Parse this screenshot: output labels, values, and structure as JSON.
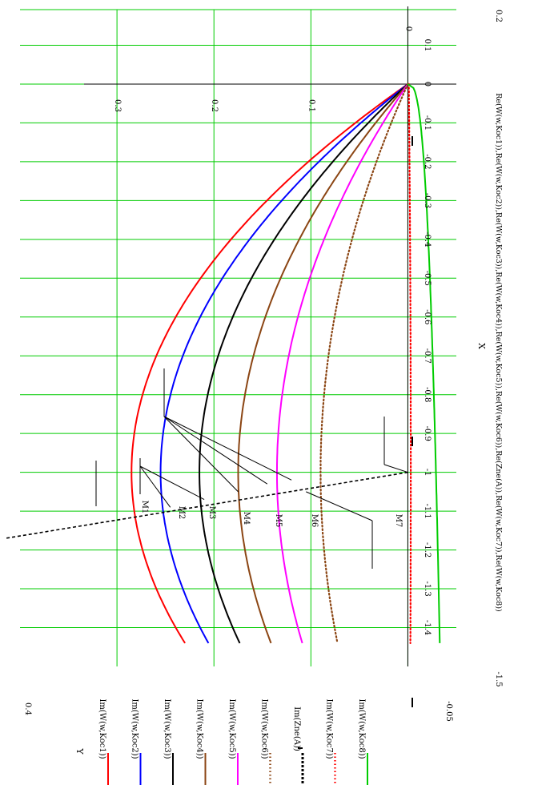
{
  "chart_data": {
    "type": "line",
    "orientation": "rotated 90 degrees clockwise (X runs top to bottom, Y runs right to left)",
    "x_axis": {
      "label": "X",
      "range": [
        -1.5,
        0.2
      ],
      "ticks": [
        -1.4,
        -1.3,
        -1.2,
        -1.1,
        -1,
        -0.9,
        -0.8,
        -0.7,
        -0.6,
        -0.5,
        -0.4,
        -0.3,
        -0.2,
        -0.1,
        0,
        0.1
      ],
      "tick_labels": [
        "-1.4",
        "-1.3",
        "-1.2",
        "-1.1",
        "-1",
        "-0.9",
        "-0.8",
        "-0.7",
        "-0.6",
        "-0.5",
        "-0.4",
        "-0.3",
        "-0.2",
        "-0.1",
        "0",
        "0.1"
      ],
      "min_label": "-1.5",
      "max_label": "0.2",
      "expression": "Re(W(w,Koc1)),Re(W(w,Koc2)),Re(W(w,Koc3)),Re(W(w,Koc4)),Re(W(w,Koc5)),Re(W(w,Koc6)),Re(Zne(A)),Re(W(w,Koc7)),Re(W(w,Koc8))"
    },
    "y_axis": {
      "label": "Y",
      "range": [
        -0.05,
        0.4
      ],
      "ticks": [
        0.3,
        0.2,
        0.1,
        0
      ],
      "tick_labels": [
        "0.3",
        "0.2",
        "0.1",
        "0"
      ],
      "min_label": "-0.05",
      "max_label": "0.4"
    },
    "grid": true,
    "grid_color": "#00cc00",
    "legend_position": "left (rotated)",
    "series": [
      {
        "name": "Im(W(w,Koc1))",
        "color": "#ff0000",
        "style": "solid",
        "peak": 0.285
      },
      {
        "name": "Im(W(w,Koc2))",
        "color": "#0000ff",
        "style": "solid",
        "peak": 0.255
      },
      {
        "name": "Im(W(w,Koc3))",
        "color": "#000000",
        "style": "solid",
        "peak": 0.215
      },
      {
        "name": "Im(W(w,Koc4))",
        "color": "#8b4513",
        "style": "solid",
        "peak": 0.175
      },
      {
        "name": "Im(W(w,Koc5))",
        "color": "#ff00ff",
        "style": "solid",
        "peak": 0.135
      },
      {
        "name": "Im(W(w,Koc6))",
        "color": "#8b4513",
        "style": "dotted",
        "peak": 0.09
      },
      {
        "name": "Im(Zne(A))",
        "color": "#000000",
        "style": "dashed"
      },
      {
        "name": "Im(W(w,Koc7))",
        "color": "#ff0000",
        "style": "dotted"
      },
      {
        "name": "Im(W(w,Koc8))",
        "color": "#00cc00",
        "style": "solid"
      }
    ],
    "annotations": [
      "M1",
      "M2",
      "M3",
      "M4",
      "M5",
      "M6",
      "M7"
    ],
    "small_marks": [
      "-",
      "-",
      "-"
    ]
  }
}
